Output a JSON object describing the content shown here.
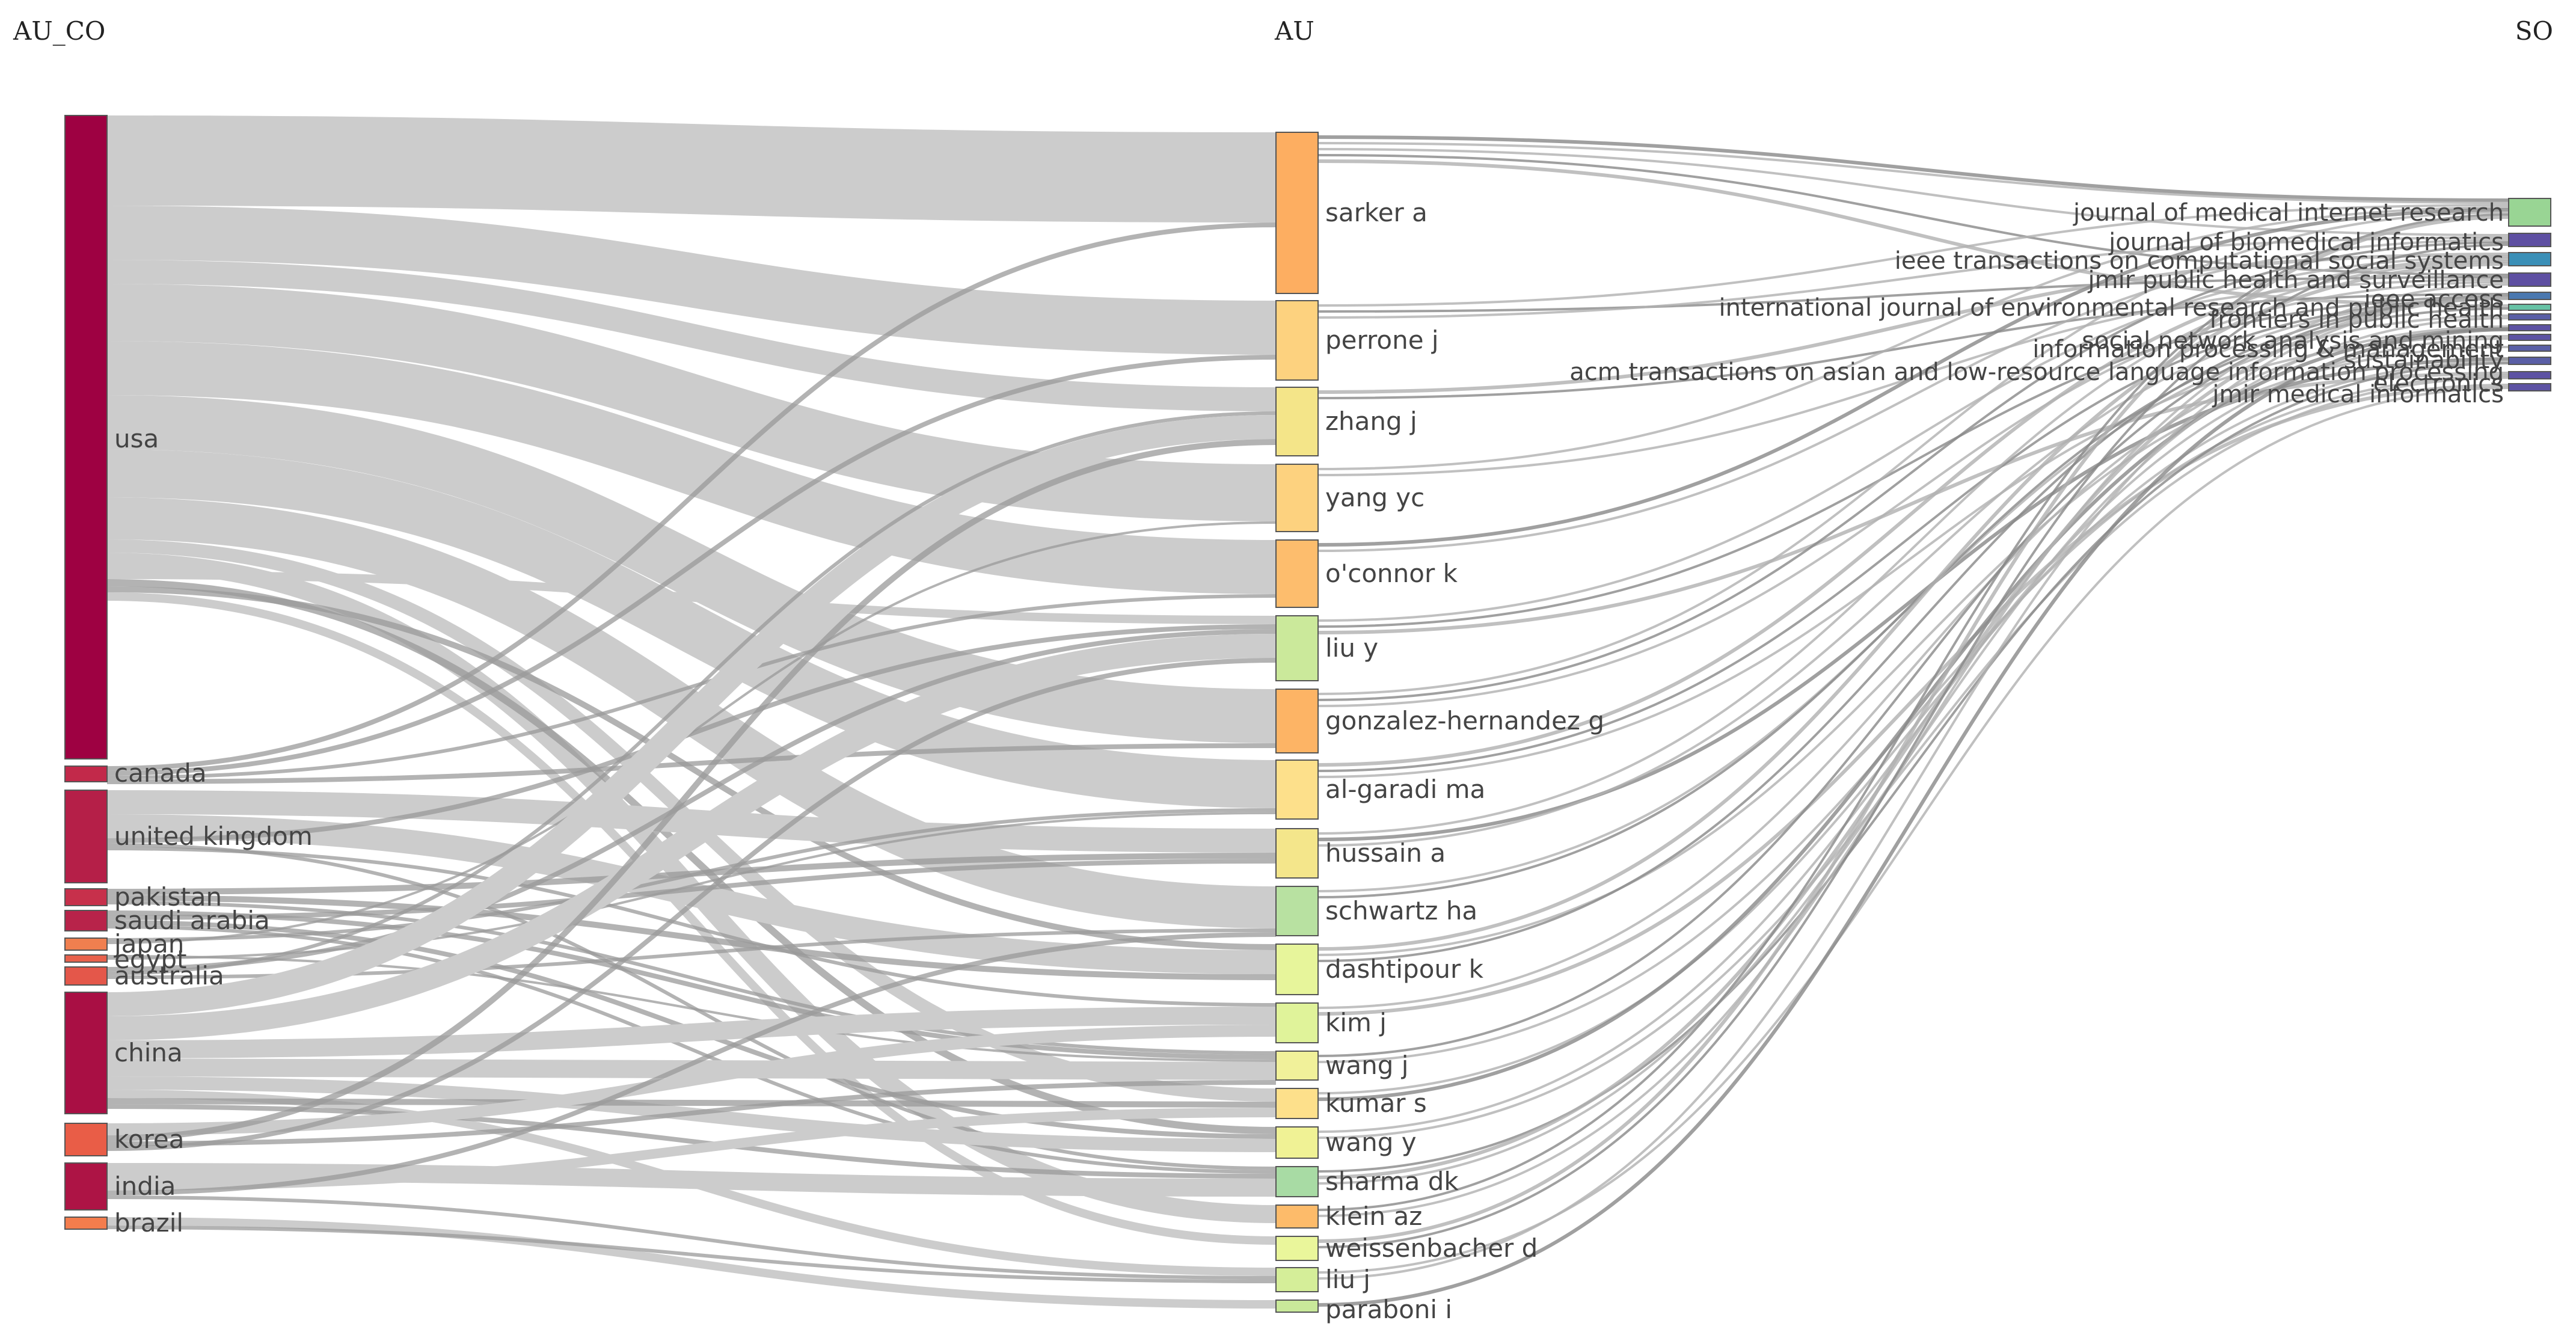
{
  "diagram": {
    "type": "three-field-plot",
    "columns": [
      {
        "key": "au_co",
        "title": "AU_CO"
      },
      {
        "key": "au",
        "title": "AU"
      },
      {
        "key": "so",
        "title": "SO"
      }
    ],
    "au_co_nodes": [
      {
        "name": "usa",
        "color": "#9e0142"
      },
      {
        "name": "canada",
        "color": "#c2294a"
      },
      {
        "name": "united kingdom",
        "color": "#b51f48"
      },
      {
        "name": "pakistan",
        "color": "#c7304b"
      },
      {
        "name": "saudi arabia",
        "color": "#b8234a"
      },
      {
        "name": "japan",
        "color": "#f07f4f"
      },
      {
        "name": "egypt",
        "color": "#e8614c"
      },
      {
        "name": "australia",
        "color": "#e4574a"
      },
      {
        "name": "china",
        "color": "#a90f44"
      },
      {
        "name": "korea",
        "color": "#e95d47"
      },
      {
        "name": "india",
        "color": "#ad1445"
      },
      {
        "name": "brazil",
        "color": "#f47d4d"
      }
    ],
    "au_nodes": [
      {
        "name": "sarker a",
        "color": "#fdae61"
      },
      {
        "name": "perrone j",
        "color": "#fdd27f"
      },
      {
        "name": "zhang j",
        "color": "#f4e589"
      },
      {
        "name": "yang yc",
        "color": "#fdd27f"
      },
      {
        "name": "o'connor k",
        "color": "#fdbd6d"
      },
      {
        "name": "liu y",
        "color": "#cbe99b"
      },
      {
        "name": "gonzalez-hernandez g",
        "color": "#fdb465"
      },
      {
        "name": "al-garadi ma",
        "color": "#fde08b"
      },
      {
        "name": "hussain a",
        "color": "#f4e68b"
      },
      {
        "name": "schwartz ha",
        "color": "#b8e1a1"
      },
      {
        "name": "dashtipour k",
        "color": "#e7f59b"
      },
      {
        "name": "kim j",
        "color": "#e0f39a"
      },
      {
        "name": "wang j",
        "color": "#f1f19a"
      },
      {
        "name": "kumar s",
        "color": "#fde08b"
      },
      {
        "name": "wang y",
        "color": "#f0f295"
      },
      {
        "name": "sharma dk",
        "color": "#a8dba4"
      },
      {
        "name": "klein az",
        "color": "#fdbb6a"
      },
      {
        "name": "weissenbacher d",
        "color": "#eaf69b"
      },
      {
        "name": "liu j",
        "color": "#d5ee99"
      },
      {
        "name": "paraboni i",
        "color": "#c9e99a"
      }
    ],
    "so_nodes": [
      {
        "name": "journal of medical internet research",
        "color": "#99d594"
      },
      {
        "name": "journal of biomedical informatics",
        "color": "#5e4fa2"
      },
      {
        "name": "ieee transactions on computational social systems",
        "color": "#3a8fb7"
      },
      {
        "name": "jmir public health and surveillance",
        "color": "#5e4fa2"
      },
      {
        "name": "ieee access",
        "color": "#4a78b0"
      },
      {
        "name": "international journal of environmental research and public health",
        "color": "#66c2a5"
      },
      {
        "name": "frontiers in public health",
        "color": "#5a5fa6"
      },
      {
        "name": "social network analysis and mining",
        "color": "#5d52a3"
      },
      {
        "name": "information processing & management",
        "color": "#5d52a3"
      },
      {
        "name": "sustainability",
        "color": "#5a5fa6"
      },
      {
        "name": "acm transactions on asian and low-resource language information processing",
        "color": "#5a5fa6"
      },
      {
        "name": "electronics",
        "color": "#5d52a3"
      },
      {
        "name": "jmir medical informatics",
        "color": "#5d52a3"
      }
    ]
  }
}
